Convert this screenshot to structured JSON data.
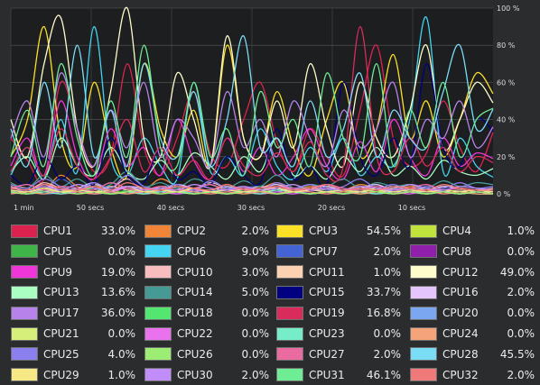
{
  "chart_data": {
    "type": "line",
    "title": "",
    "xlabel": "",
    "ylabel": "",
    "x_tick_labels": [
      "1 min",
      "50 secs",
      "40 secs",
      "30 secs",
      "20 secs",
      "10 secs"
    ],
    "y_tick_labels": [
      "100 %",
      "80 %",
      "60 %",
      "40 %",
      "20 %",
      "0 %"
    ],
    "ylim": [
      0,
      100
    ],
    "x_range_seconds_ago": [
      60,
      0
    ],
    "grid": true,
    "legend_position": "bottom",
    "series": [
      {
        "name": "CPU1",
        "color": "#dc2350",
        "value": "33.0%",
        "values": [
          30,
          18,
          8,
          60,
          35,
          12,
          20,
          70,
          25,
          10,
          30,
          55,
          22,
          15,
          40,
          60,
          28,
          12,
          35,
          20,
          10,
          45,
          80,
          30,
          15,
          22,
          50,
          25,
          12,
          33
        ]
      },
      {
        "name": "CPU2",
        "color": "#f08537",
        "value": "2.0%",
        "values": [
          5,
          3,
          2,
          10,
          4,
          2,
          6,
          3,
          2,
          8,
          4,
          3,
          2,
          5,
          2,
          3,
          6,
          2,
          4,
          3,
          2,
          5,
          3,
          2,
          4,
          3,
          2,
          3,
          2,
          2
        ]
      },
      {
        "name": "CPU3",
        "color": "#fce025",
        "value": "54.5%",
        "values": [
          20,
          40,
          90,
          30,
          15,
          60,
          25,
          10,
          70,
          35,
          20,
          45,
          15,
          80,
          30,
          20,
          55,
          25,
          10,
          40,
          60,
          20,
          35,
          75,
          30,
          50,
          20,
          40,
          65,
          54
        ]
      },
      {
        "name": "CPU4",
        "color": "#c1e43c",
        "value": "1.0%",
        "values": [
          2,
          1,
          3,
          2,
          1,
          4,
          2,
          1,
          2,
          3,
          1,
          2,
          1,
          3,
          2,
          1,
          2,
          1,
          3,
          2,
          1,
          2,
          1,
          2,
          3,
          1,
          2,
          1,
          2,
          1
        ]
      },
      {
        "name": "CPU5",
        "color": "#3fb449",
        "value": "0.0%",
        "values": [
          1,
          0,
          2,
          1,
          0,
          1,
          0,
          2,
          1,
          0,
          1,
          0,
          1,
          2,
          0,
          1,
          0,
          1,
          0,
          1,
          2,
          0,
          1,
          0,
          1,
          0,
          1,
          0,
          1,
          0
        ]
      },
      {
        "name": "CPU6",
        "color": "#44d4f1",
        "value": "9.0%",
        "values": [
          10,
          25,
          8,
          40,
          12,
          90,
          20,
          10,
          30,
          15,
          8,
          60,
          12,
          20,
          10,
          35,
          15,
          8,
          25,
          12,
          30,
          10,
          20,
          15,
          40,
          95,
          12,
          30,
          15,
          9
        ]
      },
      {
        "name": "CPU7",
        "color": "#4464d6",
        "value": "2.0%",
        "values": [
          3,
          5,
          2,
          8,
          3,
          2,
          6,
          3,
          2,
          4,
          3,
          2,
          5,
          2,
          3,
          4,
          2,
          3,
          2,
          5,
          3,
          2,
          4,
          3,
          2,
          3,
          2,
          4,
          3,
          2
        ]
      },
      {
        "name": "CPU8",
        "color": "#901fac",
        "value": "0.0%",
        "values": [
          1,
          0,
          2,
          1,
          0,
          3,
          1,
          0,
          1,
          2,
          0,
          1,
          0,
          1,
          2,
          0,
          1,
          0,
          1,
          0,
          2,
          1,
          0,
          1,
          0,
          1,
          0,
          1,
          0,
          0
        ]
      },
      {
        "name": "CPU9",
        "color": "#ee36d9",
        "value": "19.0%",
        "values": [
          15,
          30,
          10,
          50,
          20,
          8,
          35,
          15,
          25,
          10,
          40,
          18,
          8,
          30,
          12,
          25,
          10,
          20,
          35,
          15,
          8,
          28,
          12,
          40,
          20,
          10,
          30,
          15,
          22,
          19
        ]
      },
      {
        "name": "CPU10",
        "color": "#f9bcbf",
        "value": "3.0%",
        "values": [
          4,
          2,
          6,
          3,
          2,
          5,
          3,
          8,
          2,
          4,
          3,
          2,
          6,
          3,
          2,
          4,
          3,
          2,
          5,
          3,
          2,
          4,
          2,
          3,
          5,
          2,
          4,
          3,
          2,
          3
        ]
      },
      {
        "name": "CPU11",
        "color": "#fbd1b1",
        "value": "1.0%",
        "values": [
          2,
          1,
          3,
          1,
          2,
          1,
          4,
          2,
          1,
          3,
          1,
          2,
          1,
          2,
          3,
          1,
          2,
          1,
          3,
          1,
          2,
          1,
          2,
          1,
          3,
          2,
          1,
          2,
          1,
          1
        ]
      },
      {
        "name": "CPU12",
        "color": "#fffccb",
        "value": "49.0%",
        "values": [
          40,
          20,
          70,
          95,
          35,
          15,
          55,
          100,
          30,
          20,
          65,
          40,
          15,
          85,
          30,
          20,
          50,
          25,
          70,
          35,
          15,
          60,
          30,
          20,
          45,
          80,
          25,
          40,
          60,
          49
        ]
      },
      {
        "name": "CPU13",
        "color": "#aaffc3",
        "value": "13.6%",
        "values": [
          12,
          20,
          8,
          30,
          15,
          10,
          25,
          12,
          8,
          18,
          10,
          22,
          15,
          8,
          20,
          12,
          30,
          10,
          15,
          8,
          20,
          12,
          25,
          10,
          15,
          8,
          18,
          12,
          10,
          13.6
        ]
      },
      {
        "name": "CPU14",
        "color": "#469a95",
        "value": "5.0%",
        "values": [
          6,
          3,
          10,
          4,
          8,
          3,
          5,
          12,
          4,
          6,
          3,
          8,
          5,
          3,
          7,
          4,
          10,
          3,
          5,
          4,
          8,
          3,
          6,
          4,
          5,
          3,
          7,
          4,
          6,
          5
        ]
      },
      {
        "name": "CPU15",
        "color": "#000080",
        "value": "33.7%",
        "values": [
          10,
          5,
          20,
          8,
          15,
          5,
          30,
          10,
          6,
          25,
          8,
          12,
          5,
          20,
          10,
          6,
          35,
          8,
          15,
          5,
          60,
          20,
          10,
          30,
          15,
          70,
          25,
          15,
          40,
          33.7
        ]
      },
      {
        "name": "CPU16",
        "color": "#e5c5fe",
        "value": "2.0%",
        "values": [
          3,
          2,
          5,
          2,
          3,
          6,
          2,
          4,
          3,
          2,
          5,
          3,
          2,
          4,
          2,
          3,
          5,
          2,
          3,
          4,
          2,
          3,
          5,
          2,
          3,
          2,
          4,
          3,
          2,
          2
        ]
      },
      {
        "name": "CPU17",
        "color": "#b783eb",
        "value": "36.0%",
        "values": [
          30,
          50,
          20,
          65,
          35,
          15,
          45,
          25,
          60,
          20,
          40,
          30,
          15,
          55,
          25,
          40,
          20,
          50,
          30,
          15,
          45,
          25,
          35,
          60,
          20,
          40,
          30,
          50,
          25,
          36
        ]
      },
      {
        "name": "CPU18",
        "color": "#53e671",
        "value": "0.0%",
        "values": [
          1,
          0,
          2,
          0,
          1,
          3,
          0,
          1,
          0,
          2,
          1,
          0,
          1,
          0,
          2,
          1,
          0,
          1,
          0,
          1,
          2,
          0,
          1,
          0,
          1,
          0,
          2,
          1,
          0,
          0
        ]
      },
      {
        "name": "CPU19",
        "color": "#d92b5c",
        "value": "16.8%",
        "values": [
          12,
          25,
          10,
          35,
          15,
          8,
          20,
          40,
          12,
          25,
          10,
          18,
          8,
          30,
          15,
          10,
          22,
          12,
          28,
          10,
          15,
          90,
          20,
          12,
          30,
          15,
          25,
          12,
          20,
          16.8
        ]
      },
      {
        "name": "CPU20",
        "color": "#7ba6f0",
        "value": "0.0%",
        "values": [
          1,
          2,
          0,
          1,
          3,
          0,
          1,
          0,
          2,
          1,
          0,
          1,
          2,
          0,
          1,
          0,
          1,
          2,
          0,
          1,
          0,
          1,
          0,
          2,
          1,
          0,
          1,
          0,
          1,
          0
        ]
      },
      {
        "name": "CPU21",
        "color": "#d5ef7a",
        "value": "0.0%",
        "values": [
          1,
          0,
          1,
          2,
          0,
          1,
          0,
          1,
          0,
          2,
          1,
          0,
          1,
          0,
          1,
          2,
          0,
          1,
          0,
          1,
          0,
          1,
          2,
          0,
          1,
          0,
          1,
          0,
          1,
          0
        ]
      },
      {
        "name": "CPU22",
        "color": "#eb72ef",
        "value": "0.0%",
        "values": [
          0,
          1,
          2,
          0,
          1,
          0,
          1,
          3,
          0,
          1,
          0,
          2,
          1,
          0,
          1,
          0,
          1,
          0,
          2,
          1,
          0,
          1,
          0,
          1,
          0,
          2,
          1,
          0,
          1,
          0
        ]
      },
      {
        "name": "CPU23",
        "color": "#77ecc8",
        "value": "0.0%",
        "values": [
          1,
          0,
          1,
          0,
          2,
          1,
          0,
          1,
          0,
          1,
          2,
          0,
          1,
          0,
          1,
          0,
          2,
          1,
          0,
          1,
          0,
          1,
          0,
          1,
          2,
          0,
          1,
          0,
          1,
          0
        ]
      },
      {
        "name": "CPU24",
        "color": "#f5a37a",
        "value": "0.0%",
        "values": [
          0,
          1,
          0,
          2,
          1,
          0,
          1,
          0,
          1,
          0,
          2,
          1,
          0,
          1,
          0,
          1,
          0,
          2,
          1,
          0,
          1,
          0,
          1,
          0,
          1,
          2,
          0,
          1,
          0,
          0
        ]
      },
      {
        "name": "CPU25",
        "color": "#8c7ff0",
        "value": "4.0%",
        "values": [
          5,
          3,
          8,
          4,
          2,
          6,
          3,
          10,
          4,
          3,
          5,
          2,
          7,
          3,
          4,
          2,
          6,
          3,
          5,
          2,
          4,
          8,
          3,
          5,
          2,
          4,
          3,
          6,
          3,
          4
        ]
      },
      {
        "name": "CPU26",
        "color": "#9ded74",
        "value": "0.0%",
        "values": [
          1,
          0,
          2,
          1,
          0,
          1,
          0,
          1,
          2,
          0,
          1,
          0,
          1,
          0,
          1,
          2,
          0,
          1,
          0,
          1,
          0,
          2,
          1,
          0,
          1,
          0,
          1,
          0,
          1,
          0
        ]
      },
      {
        "name": "CPU27",
        "color": "#ea6ba0",
        "value": "2.0%",
        "values": [
          3,
          5,
          2,
          4,
          3,
          2,
          6,
          3,
          2,
          4,
          2,
          3,
          5,
          2,
          3,
          2,
          4,
          3,
          2,
          5,
          3,
          2,
          4,
          2,
          3,
          5,
          2,
          3,
          2,
          2
        ]
      },
      {
        "name": "CPU28",
        "color": "#7bdcf6",
        "value": "45.5%",
        "values": [
          35,
          15,
          60,
          25,
          80,
          20,
          45,
          15,
          70,
          30,
          20,
          55,
          15,
          40,
          85,
          25,
          30,
          15,
          50,
          20,
          35,
          65,
          20,
          45,
          30,
          25,
          55,
          80,
          35,
          45.5
        ]
      },
      {
        "name": "CPU29",
        "color": "#f6e985",
        "value": "1.0%",
        "values": [
          2,
          1,
          3,
          1,
          2,
          1,
          2,
          4,
          1,
          2,
          1,
          3,
          1,
          2,
          1,
          2,
          3,
          1,
          2,
          1,
          2,
          1,
          3,
          1,
          2,
          1,
          2,
          1,
          2,
          1
        ]
      },
      {
        "name": "CPU30",
        "color": "#c08dfa",
        "value": "2.0%",
        "values": [
          3,
          2,
          4,
          2,
          5,
          3,
          2,
          4,
          2,
          3,
          2,
          5,
          3,
          2,
          4,
          2,
          3,
          5,
          2,
          3,
          2,
          4,
          3,
          2,
          5,
          3,
          2,
          4,
          3,
          2
        ]
      },
      {
        "name": "CPU31",
        "color": "#6fed94",
        "value": "46.1%",
        "values": [
          20,
          45,
          15,
          70,
          30,
          10,
          50,
          20,
          80,
          25,
          15,
          60,
          20,
          35,
          10,
          55,
          25,
          40,
          15,
          65,
          30,
          20,
          70,
          15,
          45,
          25,
          60,
          20,
          40,
          46.1
        ]
      },
      {
        "name": "CPU32",
        "color": "#f07a7a",
        "value": "2.0%",
        "values": [
          3,
          2,
          5,
          3,
          2,
          4,
          2,
          6,
          3,
          2,
          4,
          3,
          2,
          5,
          2,
          3,
          4,
          2,
          3,
          5,
          2,
          3,
          2,
          4,
          3,
          2,
          5,
          3,
          2,
          2
        ]
      }
    ]
  }
}
